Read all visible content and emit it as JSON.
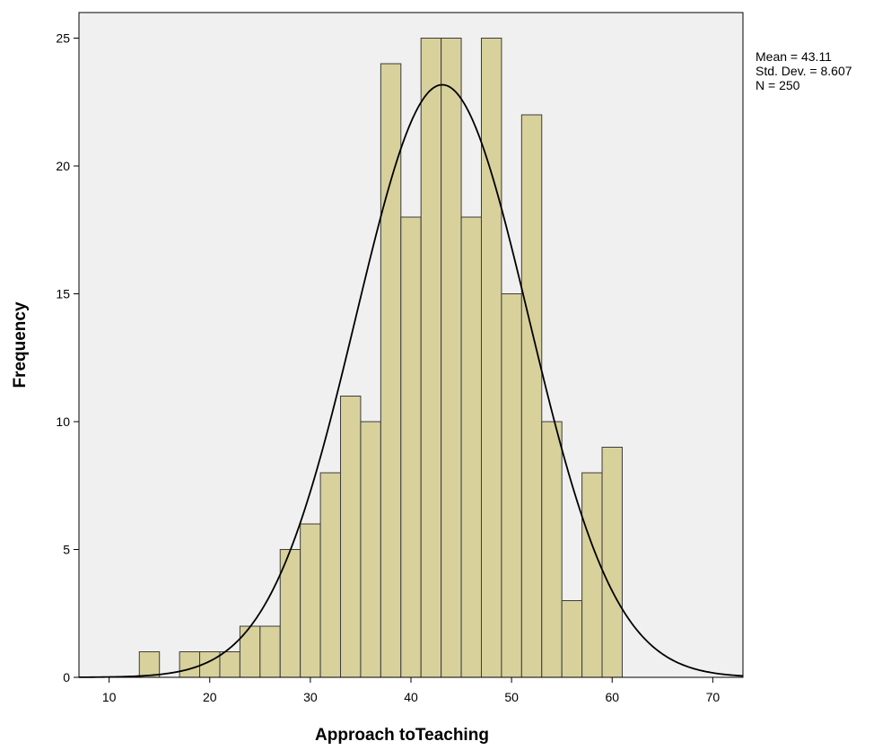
{
  "chart_data": {
    "type": "bar",
    "subtype": "histogram",
    "xlabel": "Approach toTeaching",
    "ylabel": "Frequency",
    "xlim": [
      7,
      73
    ],
    "ylim": [
      0,
      26
    ],
    "bin_width": 2,
    "x_ticks": [
      10,
      20,
      30,
      40,
      50,
      60,
      70
    ],
    "y_ticks": [
      0,
      5,
      10,
      15,
      20,
      25
    ],
    "bins": [
      {
        "start": 13,
        "end": 15,
        "count": 1
      },
      {
        "start": 15,
        "end": 17,
        "count": 0
      },
      {
        "start": 17,
        "end": 19,
        "count": 1
      },
      {
        "start": 19,
        "end": 21,
        "count": 1
      },
      {
        "start": 21,
        "end": 23,
        "count": 1
      },
      {
        "start": 23,
        "end": 25,
        "count": 2
      },
      {
        "start": 25,
        "end": 27,
        "count": 2
      },
      {
        "start": 27,
        "end": 29,
        "count": 5
      },
      {
        "start": 29,
        "end": 31,
        "count": 6
      },
      {
        "start": 31,
        "end": 33,
        "count": 8
      },
      {
        "start": 33,
        "end": 35,
        "count": 11
      },
      {
        "start": 35,
        "end": 37,
        "count": 10
      },
      {
        "start": 37,
        "end": 39,
        "count": 24
      },
      {
        "start": 39,
        "end": 41,
        "count": 18
      },
      {
        "start": 41,
        "end": 43,
        "count": 25
      },
      {
        "start": 43,
        "end": 45,
        "count": 25
      },
      {
        "start": 45,
        "end": 47,
        "count": 18
      },
      {
        "start": 47,
        "end": 49,
        "count": 25
      },
      {
        "start": 49,
        "end": 51,
        "count": 15
      },
      {
        "start": 51,
        "end": 53,
        "count": 22
      },
      {
        "start": 53,
        "end": 55,
        "count": 10
      },
      {
        "start": 55,
        "end": 57,
        "count": 3
      },
      {
        "start": 57,
        "end": 59,
        "count": 8
      },
      {
        "start": 59,
        "end": 61,
        "count": 9
      }
    ],
    "normal_curve": {
      "mean": 43.11,
      "std_dev": 8.607,
      "n": 250
    },
    "stats_lines": [
      "Mean = 43.11",
      "Std. Dev. = 8.607",
      "N = 250"
    ],
    "grid": false,
    "colors": {
      "plot_background": "#f0f0f0",
      "bar_fill": "#d8d19c",
      "bar_stroke": "#3c3c3c",
      "curve": "#000000",
      "frame": "#000000"
    }
  }
}
